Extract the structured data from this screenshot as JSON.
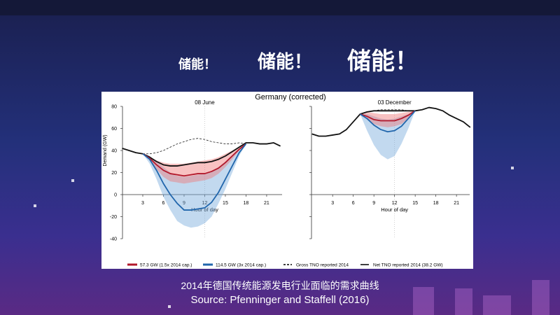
{
  "slide": {
    "heading_small": "储能！",
    "heading_medium": "储能！",
    "heading_large": "储能！",
    "caption": "2014年德国传统能源发电行业面临的需求曲线",
    "source": "Source: Pfenninger and Staffell (2016)"
  },
  "chart_data": {
    "type": "line",
    "title": "Germany (corrected)",
    "ylabel": "Demand (GW)",
    "xlabel": "Hour of day",
    "ylim": [
      -40,
      80
    ],
    "yticks": [
      -40,
      -20,
      0,
      20,
      40,
      60,
      80
    ],
    "xticks": [
      3,
      6,
      9,
      12,
      15,
      18,
      21
    ],
    "xlim": [
      0,
      23
    ],
    "legend": {
      "placement": "bottom",
      "entries": [
        {
          "label": "57.3 GW (1.5x 2014 cap.)",
          "color": "#b2182b",
          "style": "thick"
        },
        {
          "label": "114.5 GW (3x 2014 cap.)",
          "color": "#2166ac",
          "style": "thick"
        },
        {
          "label": "Gross TNO reported 2014",
          "color": "#000000",
          "style": "dashed"
        },
        {
          "label": "Net TNO reported 2014 (38.2 GW)",
          "color": "#000000",
          "style": "solid"
        }
      ]
    },
    "panels": [
      {
        "subtitle": "08 June",
        "net": [
          42,
          40,
          38,
          37,
          34,
          30,
          27,
          26,
          26,
          27,
          28,
          29,
          29,
          30,
          32,
          35,
          39,
          43,
          47,
          47,
          46,
          46,
          47,
          44
        ],
        "gross": {
          "start": 3,
          "values": [
            37,
            37,
            38,
            40,
            43,
            46,
            48,
            50,
            51,
            50,
            48,
            47,
            46,
            46,
            47,
            46
          ]
        },
        "red": {
          "start": 3,
          "median": [
            37,
            33,
            27,
            22,
            19,
            18,
            17,
            18,
            19,
            19,
            21,
            24,
            29,
            35,
            41,
            46
          ],
          "low": [
            37,
            31,
            23,
            16,
            12,
            11,
            10,
            11,
            12,
            13,
            15,
            19,
            25,
            32,
            40,
            46
          ],
          "high": [
            37,
            34,
            31,
            29,
            28,
            28,
            28,
            29,
            30,
            31,
            32,
            34,
            37,
            40,
            43,
            46
          ]
        },
        "blue": {
          "start": 3,
          "median": [
            37,
            32,
            22,
            10,
            0,
            -8,
            -14,
            -14,
            -13,
            -12,
            -7,
            2,
            14,
            26,
            38,
            46
          ],
          "low": [
            37,
            28,
            14,
            -2,
            -14,
            -24,
            -28,
            -30,
            -29,
            -26,
            -20,
            -8,
            5,
            20,
            35,
            46
          ],
          "high": [
            37,
            35,
            30,
            25,
            20,
            17,
            16,
            17,
            18,
            19,
            21,
            25,
            30,
            36,
            42,
            46
          ]
        }
      },
      {
        "subtitle": "03 December",
        "net": [
          55,
          53,
          53,
          54,
          55,
          59,
          66,
          73,
          75,
          76,
          76,
          76,
          76,
          76,
          76,
          76,
          77,
          79,
          78,
          76,
          72,
          69,
          66,
          61
        ],
        "gross": {
          "start": 7,
          "values": [
            73,
            75,
            76,
            77,
            77,
            77,
            77,
            76,
            76
          ]
        },
        "red": {
          "start": 7,
          "median": [
            73,
            71,
            68,
            67,
            67,
            67,
            69,
            72,
            76
          ],
          "low": [
            73,
            68,
            64,
            62,
            61,
            62,
            64,
            69,
            76
          ],
          "high": [
            73,
            75,
            74,
            73,
            73,
            73,
            74,
            75,
            76
          ]
        },
        "blue": {
          "start": 7,
          "median": [
            73,
            69,
            63,
            59,
            57,
            58,
            62,
            69,
            76
          ],
          "low": [
            73,
            58,
            45,
            36,
            32,
            35,
            46,
            60,
            76
          ],
          "high": [
            73,
            73,
            71,
            69,
            68,
            69,
            71,
            73,
            76
          ]
        }
      }
    ]
  }
}
